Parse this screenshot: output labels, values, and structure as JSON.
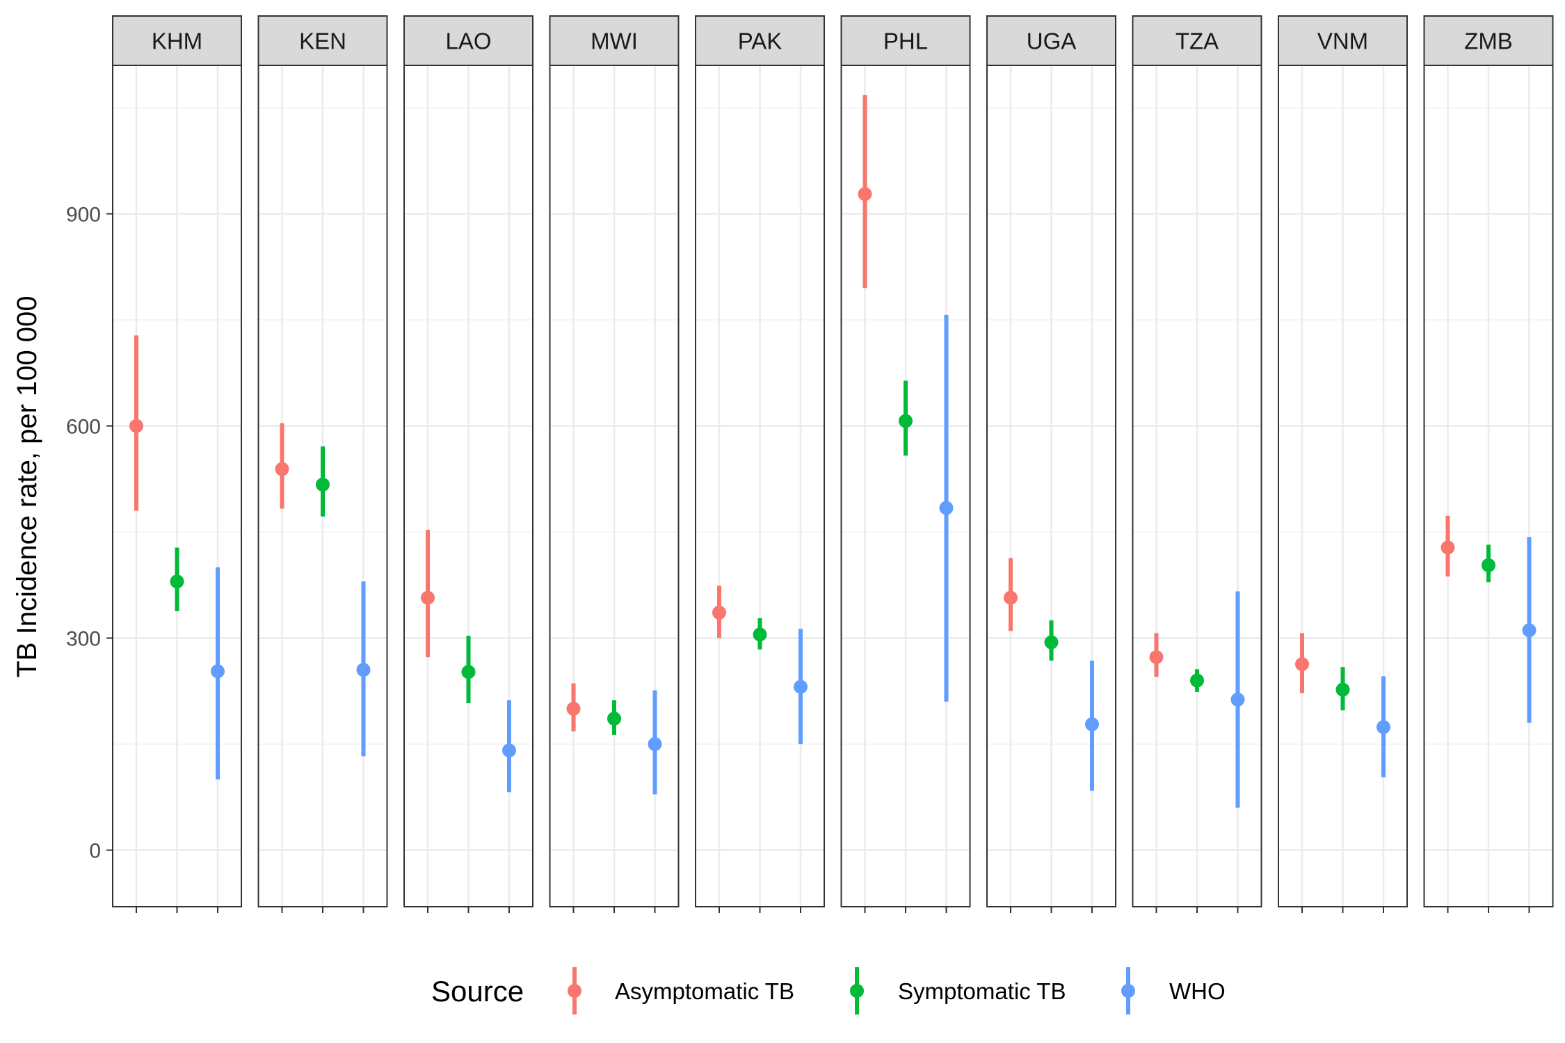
{
  "chart_data": {
    "type": "pointrange",
    "ylabel": "TB Incidence rate, per 100 000",
    "ylim": [
      -80,
      1110
    ],
    "yticks": [
      0,
      300,
      600,
      900
    ],
    "grid": true,
    "facets": [
      "KHM",
      "KEN",
      "LAO",
      "MWI",
      "PAK",
      "PHL",
      "UGA",
      "TZA",
      "VNM",
      "ZMB"
    ],
    "legend": {
      "title": "Source",
      "placement": "bottom",
      "entries": [
        "Asymptomatic TB",
        "Symptomatic TB",
        "WHO"
      ]
    },
    "colors": {
      "Asymptomatic TB": "#F8766D",
      "Symptomatic TB": "#00BA38",
      "WHO": "#619CFF"
    },
    "series": [
      {
        "name": "Asymptomatic TB",
        "values": [
          {
            "facet": "KHM",
            "y": 600,
            "ymin": 480,
            "ymax": 728
          },
          {
            "facet": "KEN",
            "y": 539,
            "ymin": 483,
            "ymax": 604
          },
          {
            "facet": "LAO",
            "y": 357,
            "ymin": 273,
            "ymax": 453
          },
          {
            "facet": "MWI",
            "y": 200,
            "ymin": 168,
            "ymax": 236
          },
          {
            "facet": "PAK",
            "y": 336,
            "ymin": 300,
            "ymax": 374
          },
          {
            "facet": "PHL",
            "y": 928,
            "ymin": 795,
            "ymax": 1068
          },
          {
            "facet": "UGA",
            "y": 357,
            "ymin": 310,
            "ymax": 413
          },
          {
            "facet": "TZA",
            "y": 273,
            "ymin": 245,
            "ymax": 307
          },
          {
            "facet": "VNM",
            "y": 263,
            "ymin": 222,
            "ymax": 307
          },
          {
            "facet": "ZMB",
            "y": 428,
            "ymin": 387,
            "ymax": 473
          }
        ]
      },
      {
        "name": "Symptomatic TB",
        "values": [
          {
            "facet": "KHM",
            "y": 380,
            "ymin": 338,
            "ymax": 428
          },
          {
            "facet": "KEN",
            "y": 517,
            "ymin": 472,
            "ymax": 571
          },
          {
            "facet": "LAO",
            "y": 252,
            "ymin": 208,
            "ymax": 303
          },
          {
            "facet": "MWI",
            "y": 186,
            "ymin": 163,
            "ymax": 212
          },
          {
            "facet": "PAK",
            "y": 305,
            "ymin": 284,
            "ymax": 328
          },
          {
            "facet": "PHL",
            "y": 607,
            "ymin": 558,
            "ymax": 664
          },
          {
            "facet": "UGA",
            "y": 294,
            "ymin": 268,
            "ymax": 325
          },
          {
            "facet": "TZA",
            "y": 240,
            "ymin": 224,
            "ymax": 256
          },
          {
            "facet": "VNM",
            "y": 227,
            "ymin": 198,
            "ymax": 259
          },
          {
            "facet": "ZMB",
            "y": 403,
            "ymin": 379,
            "ymax": 432
          }
        ]
      },
      {
        "name": "WHO",
        "values": [
          {
            "facet": "KHM",
            "y": 253,
            "ymin": 100,
            "ymax": 400
          },
          {
            "facet": "KEN",
            "y": 255,
            "ymin": 133,
            "ymax": 380
          },
          {
            "facet": "LAO",
            "y": 141,
            "ymin": 82,
            "ymax": 212
          },
          {
            "facet": "MWI",
            "y": 150,
            "ymin": 79,
            "ymax": 226
          },
          {
            "facet": "PAK",
            "y": 231,
            "ymin": 150,
            "ymax": 313
          },
          {
            "facet": "PHL",
            "y": 484,
            "ymin": 210,
            "ymax": 757
          },
          {
            "facet": "UGA",
            "y": 178,
            "ymin": 84,
            "ymax": 268
          },
          {
            "facet": "TZA",
            "y": 213,
            "ymin": 60,
            "ymax": 366
          },
          {
            "facet": "VNM",
            "y": 174,
            "ymin": 103,
            "ymax": 246
          },
          {
            "facet": "ZMB",
            "y": 311,
            "ymin": 180,
            "ymax": 443
          }
        ]
      }
    ]
  }
}
